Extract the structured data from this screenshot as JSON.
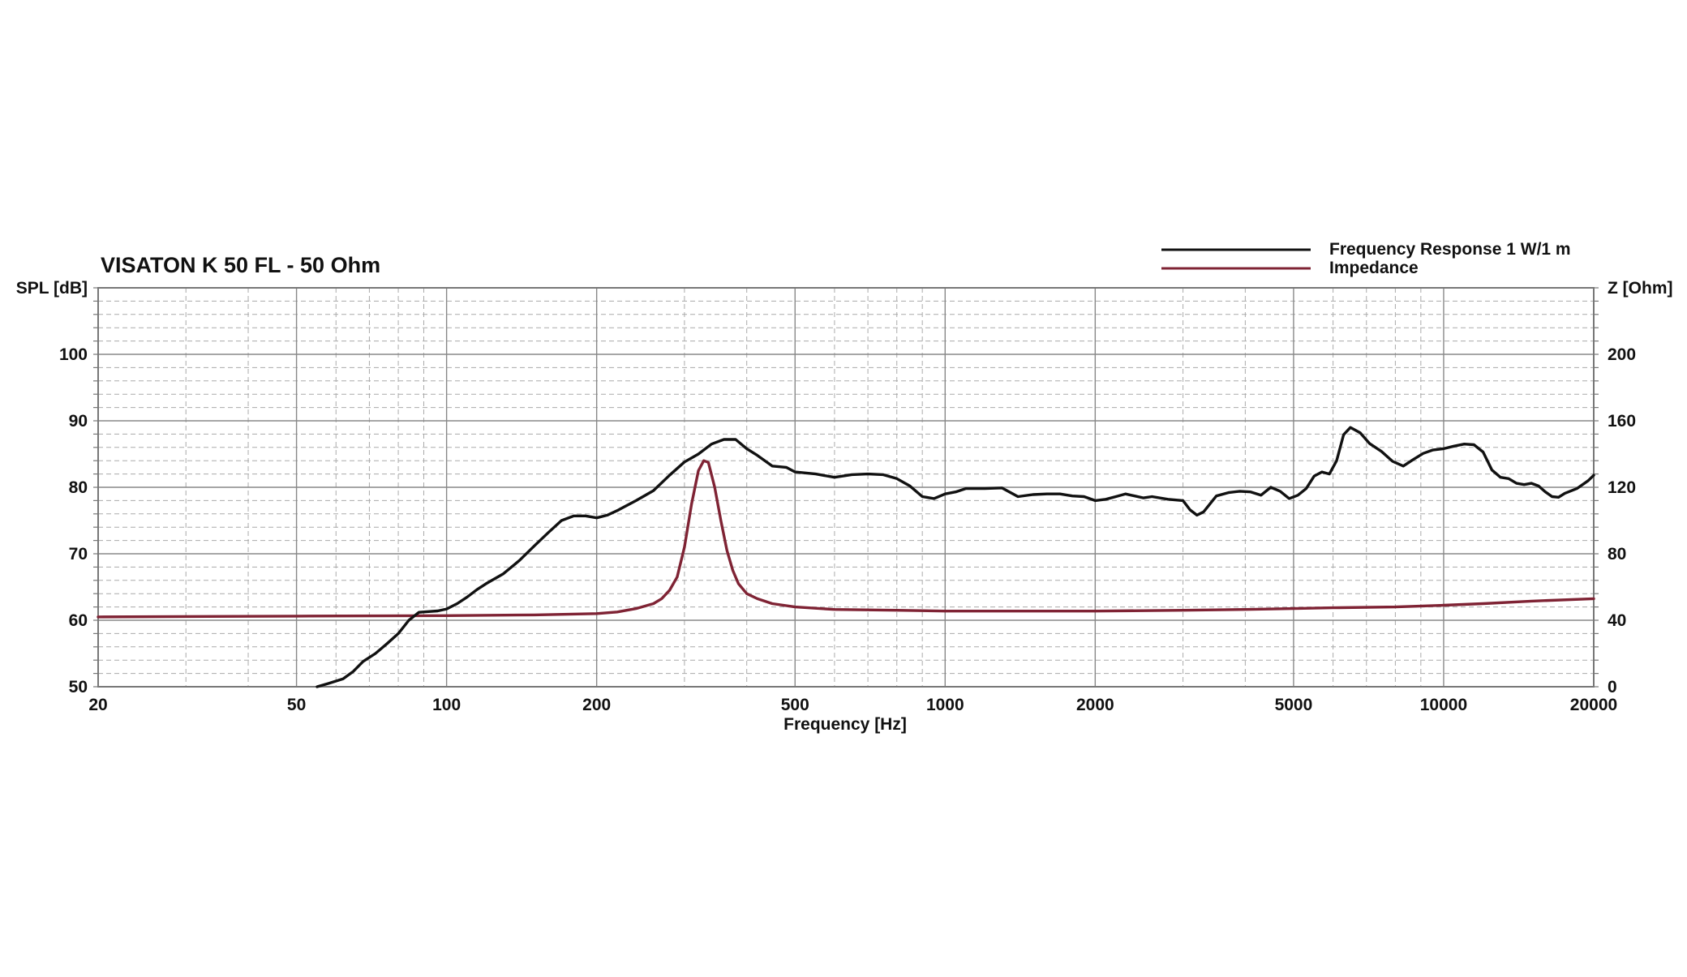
{
  "chart_data": {
    "type": "line",
    "title": "VISATON K 50 FL - 50 Ohm",
    "xlabel": "Frequency [Hz]",
    "ylabel_left": "SPL [dB]",
    "ylabel_right": "Z [Ohm]",
    "x_scale": "log",
    "xlim": [
      20,
      20000
    ],
    "ylim_left": [
      50,
      110
    ],
    "ylim_right": [
      0,
      240
    ],
    "x_ticks": [
      20,
      50,
      100,
      200,
      500,
      1000,
      2000,
      5000,
      10000,
      20000
    ],
    "x_tick_labels": [
      "20",
      "50",
      "100",
      "200",
      "500",
      "1000",
      "2000",
      "5000",
      "10000",
      "20000"
    ],
    "y_left_ticks": [
      50,
      60,
      70,
      80,
      90,
      100
    ],
    "y_left_tick_labels": [
      "50",
      "60",
      "70",
      "80",
      "90",
      "100"
    ],
    "y_right_ticks": [
      0,
      40,
      80,
      120,
      160,
      200
    ],
    "y_right_tick_labels": [
      "0",
      "40",
      "80",
      "120",
      "160",
      "200"
    ],
    "grid": true,
    "legend_position": "top-right",
    "series": [
      {
        "name": "Frequency Response 1 W/1 m",
        "axis": "left",
        "color": "#111111",
        "points": [
          [
            55,
            50.0
          ],
          [
            58,
            50.5
          ],
          [
            62,
            51.2
          ],
          [
            65,
            52.3
          ],
          [
            68,
            53.8
          ],
          [
            72,
            55.0
          ],
          [
            76,
            56.5
          ],
          [
            80,
            58.0
          ],
          [
            84,
            60.0
          ],
          [
            88,
            61.2
          ],
          [
            92,
            61.3
          ],
          [
            96,
            61.4
          ],
          [
            100,
            61.7
          ],
          [
            105,
            62.5
          ],
          [
            110,
            63.5
          ],
          [
            115,
            64.6
          ],
          [
            120,
            65.5
          ],
          [
            130,
            67.0
          ],
          [
            140,
            69.0
          ],
          [
            150,
            71.2
          ],
          [
            160,
            73.2
          ],
          [
            170,
            75.0
          ],
          [
            180,
            75.7
          ],
          [
            190,
            75.7
          ],
          [
            200,
            75.4
          ],
          [
            210,
            75.8
          ],
          [
            220,
            76.5
          ],
          [
            240,
            78.0
          ],
          [
            260,
            79.5
          ],
          [
            280,
            81.8
          ],
          [
            300,
            83.8
          ],
          [
            320,
            85.0
          ],
          [
            340,
            86.5
          ],
          [
            360,
            87.2
          ],
          [
            380,
            87.2
          ],
          [
            400,
            85.8
          ],
          [
            420,
            84.8
          ],
          [
            450,
            83.2
          ],
          [
            480,
            83.0
          ],
          [
            500,
            82.3
          ],
          [
            550,
            82.0
          ],
          [
            600,
            81.5
          ],
          [
            650,
            81.9
          ],
          [
            700,
            82.0
          ],
          [
            750,
            81.9
          ],
          [
            800,
            81.3
          ],
          [
            850,
            80.2
          ],
          [
            900,
            78.6
          ],
          [
            950,
            78.3
          ],
          [
            1000,
            79.0
          ],
          [
            1050,
            79.3
          ],
          [
            1100,
            79.8
          ],
          [
            1200,
            79.8
          ],
          [
            1300,
            79.9
          ],
          [
            1400,
            78.6
          ],
          [
            1500,
            78.9
          ],
          [
            1600,
            79.0
          ],
          [
            1700,
            79.0
          ],
          [
            1800,
            78.7
          ],
          [
            1900,
            78.6
          ],
          [
            2000,
            78.0
          ],
          [
            2100,
            78.2
          ],
          [
            2200,
            78.6
          ],
          [
            2300,
            79.0
          ],
          [
            2400,
            78.7
          ],
          [
            2500,
            78.4
          ],
          [
            2600,
            78.6
          ],
          [
            2800,
            78.2
          ],
          [
            3000,
            78.0
          ],
          [
            3100,
            76.6
          ],
          [
            3200,
            75.8
          ],
          [
            3300,
            76.3
          ],
          [
            3500,
            78.7
          ],
          [
            3700,
            79.2
          ],
          [
            3900,
            79.4
          ],
          [
            4100,
            79.3
          ],
          [
            4300,
            78.8
          ],
          [
            4500,
            80.0
          ],
          [
            4700,
            79.4
          ],
          [
            4900,
            78.3
          ],
          [
            5100,
            78.8
          ],
          [
            5300,
            79.8
          ],
          [
            5500,
            81.7
          ],
          [
            5700,
            82.3
          ],
          [
            5900,
            82.0
          ],
          [
            6100,
            84.0
          ],
          [
            6300,
            87.9
          ],
          [
            6500,
            89.0
          ],
          [
            6800,
            88.2
          ],
          [
            7100,
            86.6
          ],
          [
            7500,
            85.4
          ],
          [
            7900,
            83.9
          ],
          [
            8300,
            83.2
          ],
          [
            8700,
            84.2
          ],
          [
            9100,
            85.1
          ],
          [
            9500,
            85.6
          ],
          [
            10000,
            85.8
          ],
          [
            10500,
            86.2
          ],
          [
            11000,
            86.5
          ],
          [
            11500,
            86.4
          ],
          [
            12000,
            85.3
          ],
          [
            12500,
            82.6
          ],
          [
            13000,
            81.5
          ],
          [
            13500,
            81.3
          ],
          [
            14000,
            80.6
          ],
          [
            14500,
            80.4
          ],
          [
            15000,
            80.6
          ],
          [
            15500,
            80.2
          ],
          [
            16000,
            79.3
          ],
          [
            16500,
            78.6
          ],
          [
            17000,
            78.5
          ],
          [
            17500,
            79.1
          ],
          [
            18500,
            79.8
          ],
          [
            19500,
            81.0
          ],
          [
            20000,
            81.8
          ]
        ]
      },
      {
        "name": "Impedance",
        "axis": "right",
        "color": "#7f2334",
        "points": [
          [
            20,
            42.0
          ],
          [
            50,
            42.5
          ],
          [
            100,
            42.8
          ],
          [
            150,
            43.2
          ],
          [
            200,
            44.0
          ],
          [
            220,
            45.0
          ],
          [
            240,
            47.0
          ],
          [
            260,
            50.0
          ],
          [
            270,
            53.0
          ],
          [
            280,
            58.0
          ],
          [
            290,
            66.0
          ],
          [
            300,
            84.0
          ],
          [
            310,
            110.0
          ],
          [
            320,
            130.0
          ],
          [
            328,
            136.0
          ],
          [
            335,
            135.0
          ],
          [
            345,
            120.0
          ],
          [
            355,
            100.0
          ],
          [
            365,
            82.0
          ],
          [
            375,
            70.0
          ],
          [
            385,
            62.0
          ],
          [
            400,
            56.0
          ],
          [
            420,
            53.0
          ],
          [
            450,
            50.0
          ],
          [
            500,
            48.0
          ],
          [
            600,
            46.5
          ],
          [
            800,
            46.0
          ],
          [
            1000,
            45.5
          ],
          [
            2000,
            45.5
          ],
          [
            3000,
            46.0
          ],
          [
            4000,
            46.5
          ],
          [
            5000,
            47.0
          ],
          [
            6000,
            47.5
          ],
          [
            8000,
            48.0
          ],
          [
            10000,
            49.0
          ],
          [
            12000,
            50.0
          ],
          [
            15000,
            51.5
          ],
          [
            20000,
            53.0
          ]
        ]
      }
    ]
  }
}
